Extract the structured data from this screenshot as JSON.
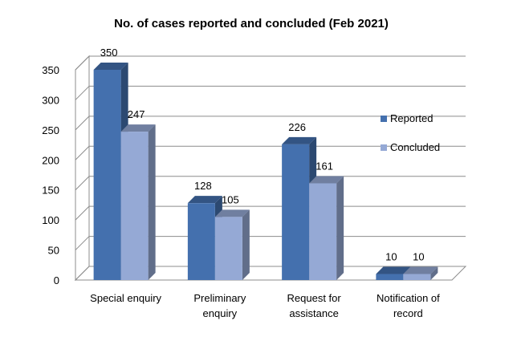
{
  "chart_data": {
    "type": "bar",
    "title": "No. of cases reported and concluded (Feb 2021)",
    "xlabel": "",
    "ylabel": "",
    "ylim": [
      0,
      350
    ],
    "yticks": [
      0,
      50,
      100,
      150,
      200,
      250,
      300,
      350
    ],
    "grid": true,
    "legend_position": "right",
    "categories": [
      [
        "Special enquiry"
      ],
      [
        "Preliminary",
        "enquiry"
      ],
      [
        "Request for",
        "assistance"
      ],
      [
        "Notification of",
        "record"
      ]
    ],
    "series": [
      {
        "name": "Reported",
        "color": "#4470AE",
        "values": [
          350,
          128,
          226,
          10
        ]
      },
      {
        "name": "Concluded",
        "color": "#95A9D5",
        "values": [
          247,
          105,
          161,
          10
        ]
      }
    ]
  }
}
